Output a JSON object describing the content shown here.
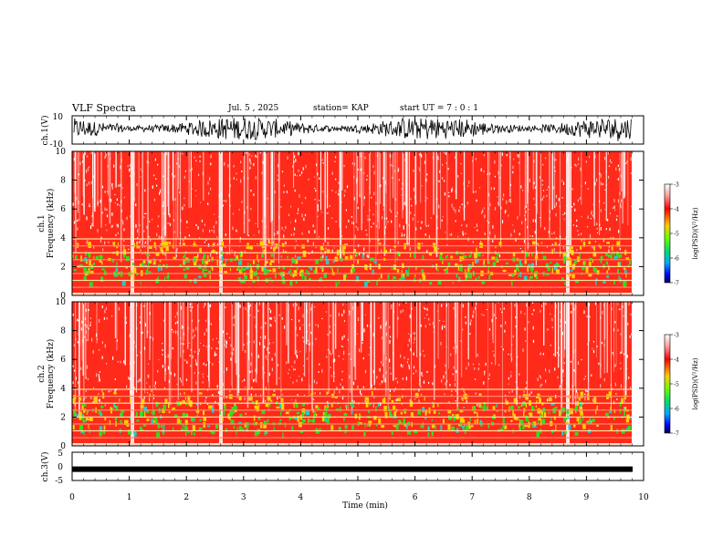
{
  "header": {
    "title": "VLF Spectra",
    "date": "Jul. 5 , 2025",
    "station": "station= KAP",
    "start": "start UT = 7 : 0 : 1"
  },
  "chart_data": [
    {
      "type": "line",
      "ylabel": "ch.1(V)",
      "ylim": [
        -10,
        10
      ],
      "yticks": [
        "10",
        "-10"
      ],
      "xlim": [
        0,
        10
      ],
      "description_level": [
        -4,
        6
      ]
    },
    {
      "type": "heatmap",
      "ylabel": "Frequency (kHz)",
      "ylabel_prefix": "ch.1",
      "ylim": [
        0,
        10
      ],
      "yticks": [
        "0",
        "2",
        "4",
        "6",
        "8",
        "10"
      ],
      "xlim": [
        0,
        10
      ],
      "colorbar": {
        "label": "log(PSD)(V²/Hz)",
        "ticks": [
          "-3",
          "-4",
          "-5",
          "-6",
          "-7"
        ],
        "range": [
          -7,
          -3
        ]
      }
    },
    {
      "type": "heatmap",
      "ylabel": "Frequency (kHz)",
      "ylabel_prefix": "ch.2",
      "ylim": [
        0,
        10
      ],
      "yticks": [
        "0",
        "2",
        "4",
        "6",
        "8",
        "10"
      ],
      "xlim": [
        0,
        10
      ],
      "colorbar": {
        "label": "log(PSD)(V²/Hz)",
        "ticks": [
          "-3",
          "-4",
          "-5",
          "-6",
          "-7"
        ],
        "range": [
          -7,
          -3
        ]
      }
    },
    {
      "type": "line",
      "ylabel": "ch.3(V)",
      "ylim": [
        -5,
        5
      ],
      "yticks": [
        "5",
        "0",
        "-5"
      ],
      "xlim": [
        0,
        10
      ],
      "level": -1
    }
  ],
  "xaxis": {
    "label": "Time (min)",
    "ticks": [
      "0",
      "1",
      "2",
      "3",
      "4",
      "5",
      "6",
      "7",
      "8",
      "9",
      "10"
    ]
  },
  "colors": {
    "spec_high": "#ff2a1a",
    "spec_mid": "#ffd000",
    "spec_low": "#33dd22",
    "spec_lower": "#22cccc"
  }
}
